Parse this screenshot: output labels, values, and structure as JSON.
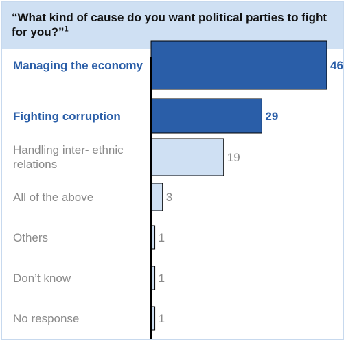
{
  "title": "“What kind of cause do you want political parties to fight for you?”",
  "title_footnote": "1",
  "colors": {
    "header_bg": "#cfe0f3",
    "bar_highlight": "#2a5ea8",
    "bar_normal": "#cfe0f3",
    "label_highlight": "#2a5ea8",
    "label_normal": "#8a8a8a",
    "axis": "#000000"
  },
  "chart_data": {
    "type": "bar",
    "orientation": "horizontal",
    "categories": [
      "Managing the economy",
      "Fighting corruption",
      "Handling inter-ethnic relations",
      "All of the above",
      "Others",
      "Don’t know",
      "No response"
    ],
    "category_display": [
      "Managing the economy",
      "Fighting corruption",
      "Handling inter- ethnic relations",
      "All of the above",
      "Others",
      "Don’t know",
      "No response"
    ],
    "values": [
      46,
      29,
      19,
      3,
      1,
      1,
      1
    ],
    "highlighted": [
      true,
      true,
      false,
      false,
      false,
      false,
      false
    ],
    "xlim": [
      0,
      46
    ],
    "grid": false,
    "legend": "none"
  }
}
